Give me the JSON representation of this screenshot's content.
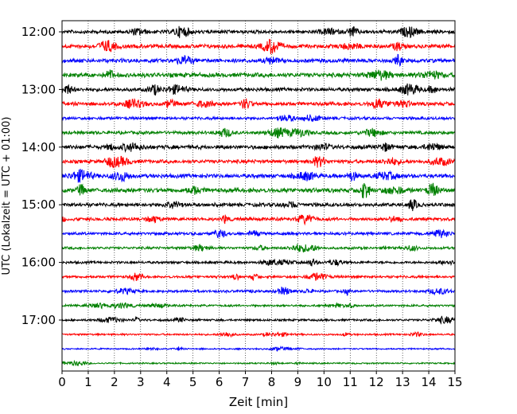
{
  "chart_data": {
    "type": "line",
    "title": "",
    "xlabel": "Zeit  [min]",
    "ylabel": "UTC (Lokalzeit = UTC + 01:00)",
    "xlim": [
      0,
      15
    ],
    "x_ticks": [
      "0",
      "1",
      "2",
      "3",
      "4",
      "5",
      "6",
      "7",
      "8",
      "9",
      "10",
      "11",
      "12",
      "13",
      "14",
      "15"
    ],
    "y_ticks": [
      "12:00",
      "13:00",
      "14:00",
      "15:00",
      "16:00",
      "17:00"
    ],
    "y_tick_row_index": [
      0,
      4,
      8,
      12,
      16,
      20
    ],
    "grid": "vertical dotted lines at each minute",
    "trace_colors": [
      "#000000",
      "#ff0000",
      "#0000ff",
      "#008000"
    ],
    "traces": [
      {
        "start": "12:00",
        "amplitude": 0.5
      },
      {
        "start": "12:15",
        "amplitude": 0.55
      },
      {
        "start": "12:30",
        "amplitude": 0.55
      },
      {
        "start": "12:45",
        "amplitude": 0.6
      },
      {
        "start": "13:00",
        "amplitude": 0.5
      },
      {
        "start": "13:15",
        "amplitude": 0.5
      },
      {
        "start": "13:30",
        "amplitude": 0.4
      },
      {
        "start": "13:45",
        "amplitude": 0.45
      },
      {
        "start": "14:00",
        "amplitude": 0.55
      },
      {
        "start": "14:15",
        "amplitude": 0.5
      },
      {
        "start": "14:30",
        "amplitude": 0.55
      },
      {
        "start": "14:45",
        "amplitude": 0.6
      },
      {
        "start": "15:00",
        "amplitude": 0.5
      },
      {
        "start": "15:15",
        "amplitude": 0.45
      },
      {
        "start": "15:30",
        "amplitude": 0.4
      },
      {
        "start": "15:45",
        "amplitude": 0.35
      },
      {
        "start": "16:00",
        "amplitude": 0.35
      },
      {
        "start": "16:15",
        "amplitude": 0.35
      },
      {
        "start": "16:30",
        "amplitude": 0.35
      },
      {
        "start": "16:45",
        "amplitude": 0.3
      },
      {
        "start": "17:00",
        "amplitude": 0.3
      },
      {
        "start": "17:15",
        "amplitude": 0.25
      },
      {
        "start": "17:30",
        "amplitude": 0.2
      },
      {
        "start": "17:45",
        "amplitude": 0.2
      }
    ]
  }
}
